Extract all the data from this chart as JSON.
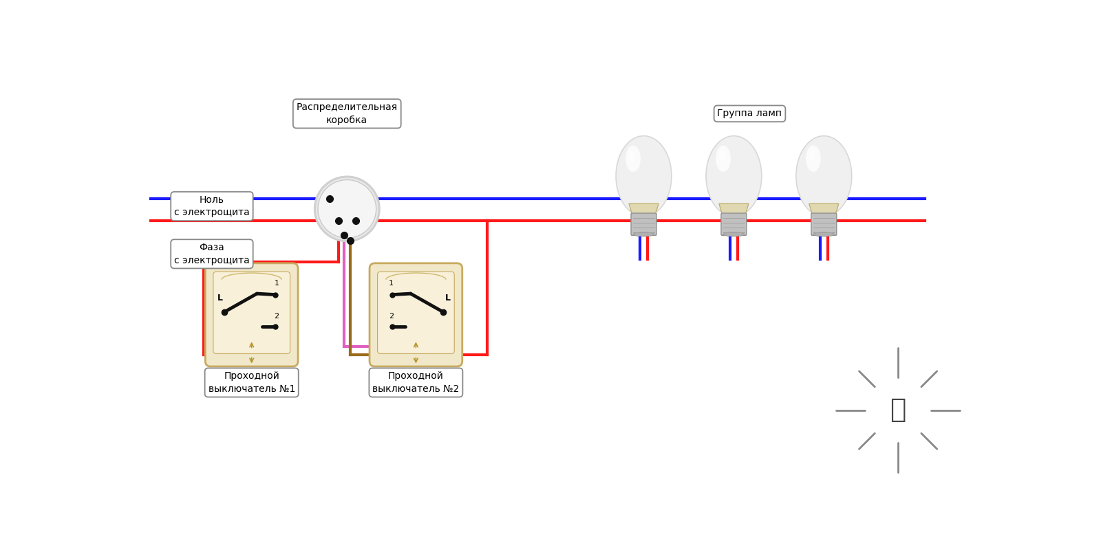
{
  "bg_color": "#ffffff",
  "label_junction": "Распределительная\nкоробка",
  "label_null": "Ноль\nс электрощита",
  "label_phase": "Фаза\nс электрощита",
  "label_lamps": "Группа ламп",
  "label_sw1": "Проходной\nвыключатель №1",
  "label_sw2": "Проходной\nвыключатель №2",
  "color_blue": "#1a1aff",
  "color_red": "#ff1a1a",
  "color_pink": "#e060c0",
  "color_brown": "#9b6b1a",
  "lw": 3.0,
  "jx": 3.9,
  "jy": 5.3,
  "jr": 0.55,
  "sw1x": 2.1,
  "sw1y": 3.3,
  "sw2x": 5.2,
  "sw2y": 3.3,
  "lamp1x": 9.5,
  "lamp2x": 11.2,
  "lamp3x": 12.9,
  "lampy": 5.2
}
